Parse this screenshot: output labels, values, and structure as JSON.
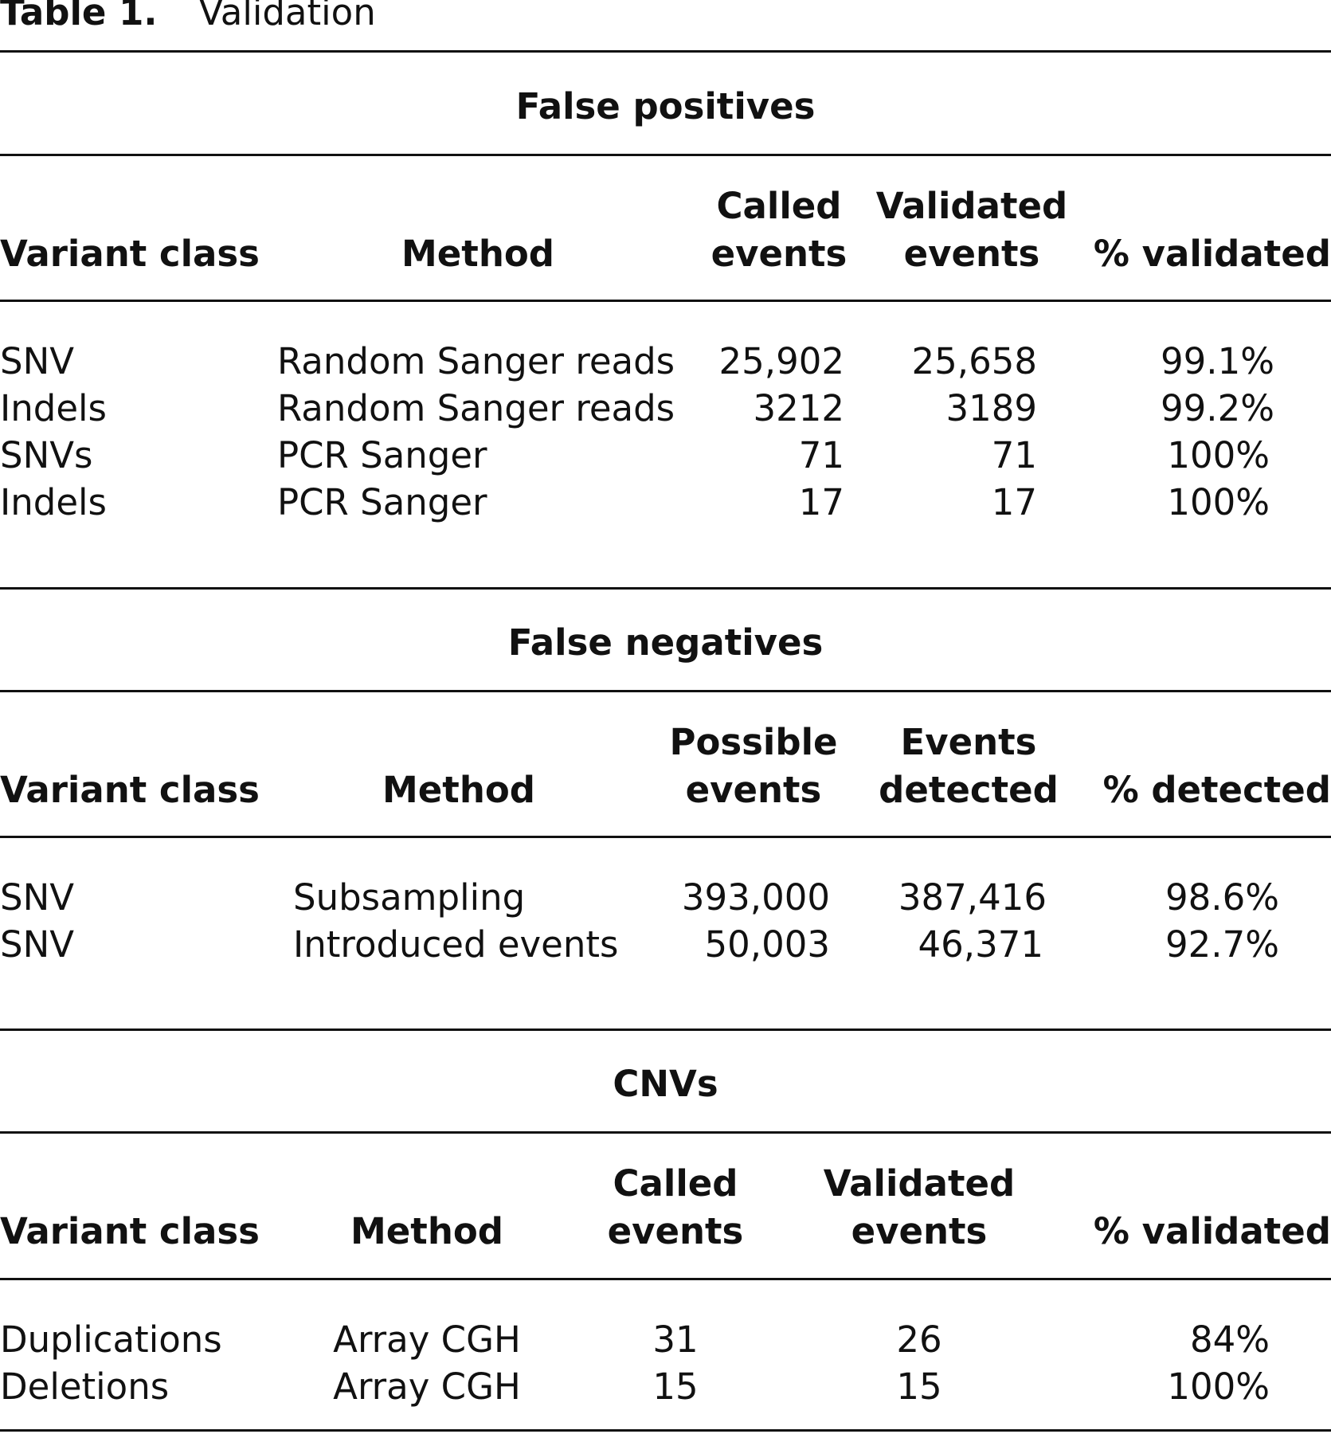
{
  "title": {
    "label": "Table 1.",
    "text": "Validation"
  },
  "sections": [
    {
      "name": "False positives",
      "headers": {
        "variant_class": "Variant class",
        "method": "Method",
        "col3": [
          "Called",
          "events"
        ],
        "col4": [
          "Validated",
          "events"
        ],
        "col5": "% validated"
      },
      "rows": [
        {
          "variant_class": "SNV",
          "method": "Random Sanger reads",
          "col3": "25,902",
          "col4": "25,658",
          "col5": "99.1%"
        },
        {
          "variant_class": "Indels",
          "method": "Random Sanger reads",
          "col3": "3212",
          "col4": "3189",
          "col5": "99.2%"
        },
        {
          "variant_class": "SNVs",
          "method": "PCR Sanger",
          "col3": "71",
          "col4": "71",
          "col5": "100%"
        },
        {
          "variant_class": "Indels",
          "method": "PCR Sanger",
          "col3": "17",
          "col4": "17",
          "col5": "100%"
        }
      ]
    },
    {
      "name": "False negatives",
      "headers": {
        "variant_class": "Variant class",
        "method": "Method",
        "col3": [
          "Possible",
          "events"
        ],
        "col4": [
          "Events",
          "detected"
        ],
        "col5": "% detected"
      },
      "rows": [
        {
          "variant_class": "SNV",
          "method": "Subsampling",
          "col3": "393,000",
          "col4": "387,416",
          "col5": "98.6%"
        },
        {
          "variant_class": "SNV",
          "method": "Introduced events",
          "col3": "50,003",
          "col4": "46,371",
          "col5": "92.7%"
        }
      ]
    },
    {
      "name": "CNVs",
      "headers": {
        "variant_class": "Variant class",
        "method": "Method",
        "col3": [
          "Called",
          "events"
        ],
        "col4": [
          "Validated",
          "events"
        ],
        "col5": "% validated"
      },
      "rows": [
        {
          "variant_class": "Duplications",
          "method": "Array CGH",
          "col3": "31",
          "col4": "26",
          "col5": "84%"
        },
        {
          "variant_class": "Deletions",
          "method": "Array CGH",
          "col3": "15",
          "col4": "15",
          "col5": "100%"
        }
      ]
    }
  ]
}
